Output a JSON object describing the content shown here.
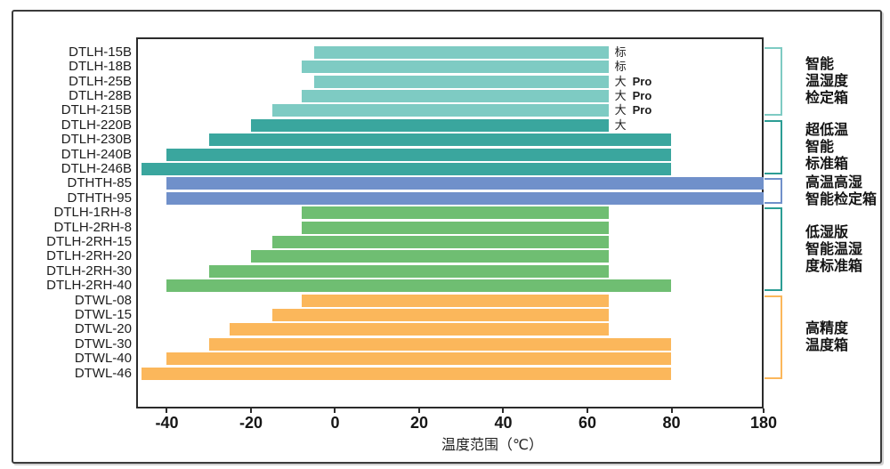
{
  "chart_data": {
    "type": "bar",
    "orientation": "horizontal",
    "xlabel": "温度范围（℃）",
    "x_ticks": [
      -40,
      -20,
      0,
      20,
      40,
      60,
      80,
      180
    ],
    "axis_note": "x axis compressed between 80 and 180",
    "xlim_left": -47.3,
    "groups": [
      {
        "name": "智能温湿度检定箱",
        "label_lines": [
          "智能",
          "温湿度",
          "检定箱"
        ],
        "bar_color": "#7ECBC3",
        "bracket_color": "#7ECBC3",
        "bars": [
          {
            "model": "DTLH-15B",
            "min": -5,
            "max": 65,
            "annotation": "标"
          },
          {
            "model": "DTLH-18B",
            "min": -8,
            "max": 65,
            "annotation": "标"
          },
          {
            "model": "DTLH-25B",
            "min": -5,
            "max": 65,
            "annotation": "大 Pro"
          },
          {
            "model": "DTLH-28B",
            "min": -8,
            "max": 65,
            "annotation": "大 Pro"
          },
          {
            "model": "DTLH-215B",
            "min": -15,
            "max": 65,
            "annotation": "大 Pro"
          }
        ]
      },
      {
        "name": "超低温智能标准箱",
        "label_lines": [
          "超低温",
          "智能",
          "标准箱"
        ],
        "bar_color": "#3AA69E",
        "bracket_color": "#2C9D94",
        "bars": [
          {
            "model": "DTLH-220B",
            "min": -20,
            "max": 65,
            "annotation": "大"
          },
          {
            "model": "DTLH-230B",
            "min": -30,
            "max": 80
          },
          {
            "model": "DTLH-240B",
            "min": -40,
            "max": 80
          },
          {
            "model": "DTLH-246B",
            "min": -46,
            "max": 80
          }
        ]
      },
      {
        "name": "高温高湿智能检定箱",
        "label_lines": [
          "高温高湿",
          "智能检定箱"
        ],
        "bar_color": "#7090CA",
        "bracket_color": "#7090CA",
        "bars": [
          {
            "model": "DTHTH-85",
            "min": -40,
            "max": 180
          },
          {
            "model": "DTHTH-95",
            "min": -40,
            "max": 180
          }
        ]
      },
      {
        "name": "低湿版智能温湿度标准箱",
        "label_lines": [
          "低湿版",
          "智能温湿",
          "度标准箱"
        ],
        "bar_color": "#6FBE72",
        "bracket_color": "#2C9D94",
        "bars": [
          {
            "model": "DTLH-1RH-8",
            "min": -8,
            "max": 65
          },
          {
            "model": "DTLH-2RH-8",
            "min": -8,
            "max": 65
          },
          {
            "model": "DTLH-2RH-15",
            "min": -15,
            "max": 65
          },
          {
            "model": "DTLH-2RH-20",
            "min": -20,
            "max": 65
          },
          {
            "model": "DTLH-2RH-30",
            "min": -30,
            "max": 65
          },
          {
            "model": "DTLH-2RH-40",
            "min": -40,
            "max": 80
          }
        ]
      },
      {
        "name": "高精度温度箱",
        "label_lines": [
          "高精度",
          "温度箱"
        ],
        "bar_color": "#FBB75B",
        "bracket_color": "#FBB75B",
        "bars": [
          {
            "model": "DTWL-08",
            "min": -8,
            "max": 65
          },
          {
            "model": "DTWL-15",
            "min": -15,
            "max": 65
          },
          {
            "model": "DTWL-20",
            "min": -25,
            "max": 65
          },
          {
            "model": "DTWL-30",
            "min": -30,
            "max": 80
          },
          {
            "model": "DTWL-40",
            "min": -40,
            "max": 80
          },
          {
            "model": "DTWL-46",
            "min": -46,
            "max": 80
          }
        ]
      }
    ]
  }
}
